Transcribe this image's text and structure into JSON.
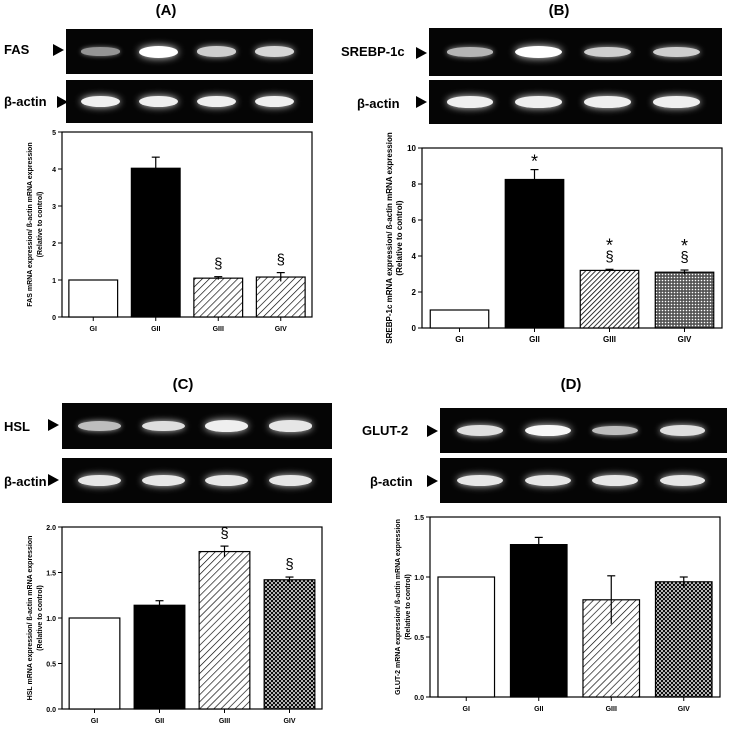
{
  "panels": [
    {
      "id": "A",
      "label": "(A)",
      "gene_label": "FAS",
      "actin_label": "β-actin",
      "gene_band_intensity": [
        0.35,
        1.0,
        0.7,
        0.75
      ],
      "actin_band_intensity": [
        0.9,
        0.9,
        0.9,
        0.9
      ]
    },
    {
      "id": "B",
      "label": "(B)",
      "gene_label": "SREBP-1c",
      "actin_label": "β-actin",
      "gene_band_intensity": [
        0.55,
        1.0,
        0.7,
        0.7
      ],
      "actin_band_intensity": [
        0.9,
        0.9,
        0.9,
        0.9
      ]
    },
    {
      "id": "C",
      "label": "(C)",
      "gene_label": "HSL",
      "actin_label": "β-actin",
      "gene_band_intensity": [
        0.6,
        0.8,
        0.9,
        0.85
      ],
      "actin_band_intensity": [
        0.85,
        0.85,
        0.85,
        0.85
      ]
    },
    {
      "id": "D",
      "label": "(D)",
      "gene_label": "GLUT-2",
      "actin_label": "β-actin",
      "gene_band_intensity": [
        0.8,
        0.95,
        0.6,
        0.8
      ],
      "actin_band_intensity": [
        0.85,
        0.85,
        0.85,
        0.85
      ]
    }
  ],
  "chart_data": [
    {
      "type": "bar",
      "panel": "A",
      "categories": [
        "GI",
        "GII",
        "GIII",
        "GIV"
      ],
      "values": [
        1.0,
        4.02,
        1.05,
        1.08
      ],
      "errors": [
        0,
        0.3,
        0.04,
        0.12
      ],
      "annotations": [
        "",
        "",
        "§",
        "§"
      ],
      "fills": [
        "white",
        "black",
        "diagonal",
        "diagonal"
      ],
      "ylabel": "FAS mRNA expression/ ß-actin mRNA expression",
      "ylabel2": "(Relative to control)",
      "ylim": [
        0,
        5
      ],
      "yticks": [
        0,
        1,
        2,
        3,
        4,
        5
      ],
      "ytick_labels": [
        "0",
        "1",
        "2",
        "3",
        "4",
        "5"
      ]
    },
    {
      "type": "bar",
      "panel": "B",
      "categories": [
        "GI",
        "GII",
        "GIII",
        "GIV"
      ],
      "values": [
        1.0,
        8.25,
        3.2,
        3.1
      ],
      "errors": [
        0,
        0.55,
        0.06,
        0.12
      ],
      "annotations": [
        "",
        "*",
        "*\n§",
        "*\n§"
      ],
      "fills": [
        "white",
        "black",
        "diagonal-dense",
        "dots"
      ],
      "ylabel": "SREBP-1c mRNA expression/ ß-actin mRNA expression",
      "ylabel2": "(Relative to control)",
      "ylim": [
        0,
        10
      ],
      "yticks": [
        0,
        2,
        4,
        6,
        8,
        10
      ],
      "ytick_labels": [
        "0",
        "2",
        "4",
        "6",
        "8",
        "10"
      ]
    },
    {
      "type": "bar",
      "panel": "C",
      "categories": [
        "GI",
        "GII",
        "GIII",
        "GIV"
      ],
      "values": [
        1.0,
        1.14,
        1.73,
        1.42
      ],
      "errors": [
        0,
        0.05,
        0.06,
        0.03
      ],
      "annotations": [
        "",
        "",
        "§",
        "§"
      ],
      "fills": [
        "white",
        "black",
        "diagonal",
        "crosshatch"
      ],
      "ylabel": "HSL mRNA expression/ ß-actin mRNA expression",
      "ylabel2": "(Relative to control)",
      "ylim": [
        0,
        2.0
      ],
      "yticks": [
        0,
        0.5,
        1.0,
        1.5,
        2.0
      ],
      "ytick_labels": [
        "0.0",
        "0.5",
        "1.0",
        "1.5",
        "2.0"
      ]
    },
    {
      "type": "bar",
      "panel": "D",
      "categories": [
        "GI",
        "GII",
        "GIII",
        "GIV"
      ],
      "values": [
        1.0,
        1.27,
        0.81,
        0.96
      ],
      "errors": [
        0,
        0.06,
        0.2,
        0.04
      ],
      "annotations": [
        "",
        "",
        "",
        ""
      ],
      "fills": [
        "white",
        "black",
        "diagonal",
        "crosshatch"
      ],
      "ylabel": "GLUT-2 mRNA expression/ ß-actin mRNA expression",
      "ylabel2": "(Relative to control)",
      "ylim": [
        0,
        1.5
      ],
      "yticks": [
        0,
        0.5,
        1.0,
        1.5
      ],
      "ytick_labels": [
        "0.0",
        "0.5",
        "1.0",
        "1.5"
      ]
    }
  ]
}
